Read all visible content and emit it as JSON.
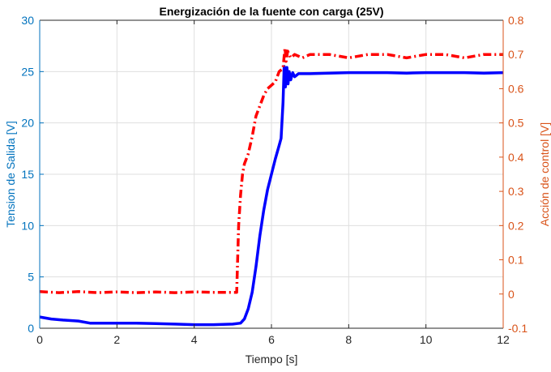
{
  "chart_data": {
    "type": "line",
    "title": "Energización de la fuente con carga (25V)",
    "xlabel": "Tiempo [s]",
    "ylabel_left": "Tension de Salida [V]",
    "ylabel_right": "Acción de control [V]",
    "xlim": [
      0,
      12
    ],
    "ylim_left": [
      0,
      30
    ],
    "ylim_right": [
      -0.1,
      0.8
    ],
    "x_ticks": [
      "0",
      "2",
      "4",
      "6",
      "8",
      "10",
      "12"
    ],
    "y_left_ticks": [
      "0",
      "5",
      "10",
      "15",
      "20",
      "25",
      "30"
    ],
    "y_right_ticks": [
      "-0.1",
      "0",
      "0.1",
      "0.2",
      "0.3",
      "0.4",
      "0.5",
      "0.6",
      "0.7",
      "0.8"
    ],
    "grid": true,
    "colors": {
      "left_axis": "#0072BD",
      "right_axis": "#D95319",
      "series_voltage": "#0000FF",
      "series_control": "#FF0000",
      "grid": "#dfdfdf"
    },
    "series": [
      {
        "axis": "left",
        "style": "solid",
        "x": [
          0,
          0.3,
          0.6,
          1.0,
          1.3,
          1.6,
          2.0,
          2.5,
          3.0,
          3.5,
          4.0,
          4.5,
          5.0,
          5.2,
          5.3,
          5.4,
          5.5,
          5.6,
          5.7,
          5.8,
          5.9,
          6.0,
          6.1,
          6.2,
          6.25,
          6.3,
          6.33,
          6.36,
          6.4,
          6.43,
          6.46,
          6.5,
          6.55,
          6.6,
          6.7,
          6.8,
          7.0,
          7.5,
          8.0,
          8.5,
          9.0,
          9.5,
          10.0,
          10.5,
          11.0,
          11.5,
          12.0
        ],
        "values": [
          1.1,
          0.9,
          0.8,
          0.7,
          0.5,
          0.5,
          0.5,
          0.5,
          0.45,
          0.4,
          0.35,
          0.35,
          0.4,
          0.5,
          0.9,
          1.9,
          3.5,
          6.0,
          9.0,
          11.5,
          13.5,
          15.0,
          16.5,
          17.8,
          18.5,
          22.0,
          25.5,
          23.5,
          25.4,
          23.8,
          25.0,
          24.2,
          24.9,
          24.5,
          24.8,
          24.8,
          24.8,
          24.85,
          24.9,
          24.9,
          24.9,
          24.85,
          24.9,
          24.9,
          24.9,
          24.85,
          24.9
        ]
      },
      {
        "axis": "right",
        "style": "dashed",
        "x": [
          0,
          0.5,
          1.0,
          1.5,
          2.0,
          2.5,
          3.0,
          3.5,
          4.0,
          4.5,
          5.0,
          5.1,
          5.15,
          5.2,
          5.25,
          5.3,
          5.4,
          5.5,
          5.6,
          5.7,
          5.8,
          5.9,
          6.0,
          6.1,
          6.2,
          6.3,
          6.35,
          6.38,
          6.42,
          6.46,
          6.5,
          6.6,
          6.8,
          7.0,
          7.5,
          8.0,
          8.5,
          9.0,
          9.5,
          10.0,
          10.5,
          11.0,
          11.5,
          12.0
        ],
        "values": [
          0.007,
          0.004,
          0.007,
          0.004,
          0.006,
          0.004,
          0.006,
          0.004,
          0.006,
          0.005,
          0.005,
          0.005,
          0.2,
          0.29,
          0.35,
          0.38,
          0.41,
          0.46,
          0.52,
          0.55,
          0.58,
          0.6,
          0.61,
          0.62,
          0.65,
          0.66,
          0.72,
          0.68,
          0.71,
          0.7,
          0.69,
          0.7,
          0.69,
          0.7,
          0.7,
          0.69,
          0.7,
          0.7,
          0.69,
          0.7,
          0.7,
          0.69,
          0.7,
          0.7
        ]
      }
    ]
  }
}
